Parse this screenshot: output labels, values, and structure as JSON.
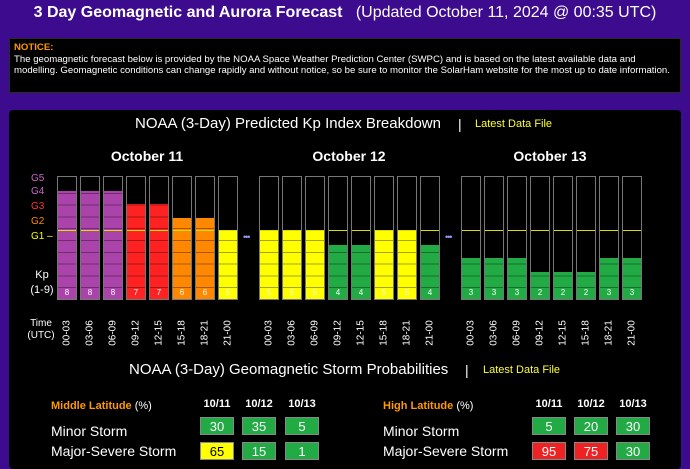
{
  "header": {
    "title": "3 Day Geomagnetic and Aurora Forecast",
    "updated": "(Updated October 11, 2024 @ 00:35 UTC)"
  },
  "notice": {
    "label": "NOTICE:",
    "text": "The geomagnetic forecast below is provided by the NOAA Space Weather Prediction Center (SWPC) and is based on the latest available data and modelling. Geomagnetic conditions can change rapidly and without notice, so be sure to monitor the SolarHam website for the most up to date information."
  },
  "kp_panel": {
    "title": "NOAA (3-Day) Predicted Kp Index Breakdown",
    "separator": "|",
    "link": "Latest Data File",
    "g_labels": [
      "G5",
      "G4",
      "G3",
      "G2",
      "G1"
    ],
    "g_colors": [
      "#cc66cc",
      "#cc66cc",
      "#ff3333",
      "#ff8800",
      "#ffff00"
    ],
    "g1_dash": "–",
    "kp_label": "Kp",
    "kp_range": "(1-9)",
    "time_label": "Time",
    "time_zone": "(UTC)",
    "dots": "•••"
  },
  "chart_data": {
    "type": "bar",
    "title": "NOAA (3-Day) Predicted Kp Index Breakdown",
    "ylabel": "Kp (1-9)",
    "ylim": [
      0,
      9
    ],
    "categories": [
      "00-03",
      "03-06",
      "06-09",
      "09-12",
      "12-15",
      "15-18",
      "18-21",
      "21-00"
    ],
    "series": [
      {
        "name": "October 11",
        "values": [
          8,
          8,
          8,
          7,
          7,
          6,
          6,
          5
        ]
      },
      {
        "name": "October 12",
        "values": [
          5,
          5,
          5,
          4,
          4,
          5,
          5,
          4
        ]
      },
      {
        "name": "October 13",
        "values": [
          3,
          3,
          3,
          2,
          2,
          2,
          3,
          3
        ]
      }
    ],
    "level_colors": {
      "1": "#22aa44",
      "2": "#22aa44",
      "3": "#22aa44",
      "4": "#22aa44",
      "5": "#ffff00",
      "6": "#ff8800",
      "7": "#ff2222",
      "8": "#aa44aa",
      "9": "#aa44aa"
    }
  },
  "storm_panel": {
    "title": "NOAA (3-Day) Geomagnetic Storm Probabilities",
    "separator": "|",
    "link": "Latest Data File",
    "middle": {
      "label": "Middle Latitude",
      "pct": "(%)",
      "dates": [
        "10/11",
        "10/12",
        "10/13"
      ],
      "rows": [
        {
          "label": "Minor Storm",
          "values": [
            "30",
            "35",
            "5"
          ],
          "colors": [
            "green",
            "green",
            "green"
          ]
        },
        {
          "label": "Major-Severe Storm",
          "values": [
            "65",
            "15",
            "1"
          ],
          "colors": [
            "yellow",
            "green",
            "green"
          ]
        }
      ]
    },
    "high": {
      "label": "High Latitude",
      "pct": "(%)",
      "dates": [
        "10/11",
        "10/12",
        "10/13"
      ],
      "rows": [
        {
          "label": "Minor Storm",
          "values": [
            "5",
            "20",
            "30"
          ],
          "colors": [
            "green",
            "green",
            "green"
          ]
        },
        {
          "label": "Major-Severe Storm",
          "values": [
            "95",
            "75",
            "30"
          ],
          "colors": [
            "red",
            "red",
            "green"
          ]
        }
      ]
    }
  }
}
